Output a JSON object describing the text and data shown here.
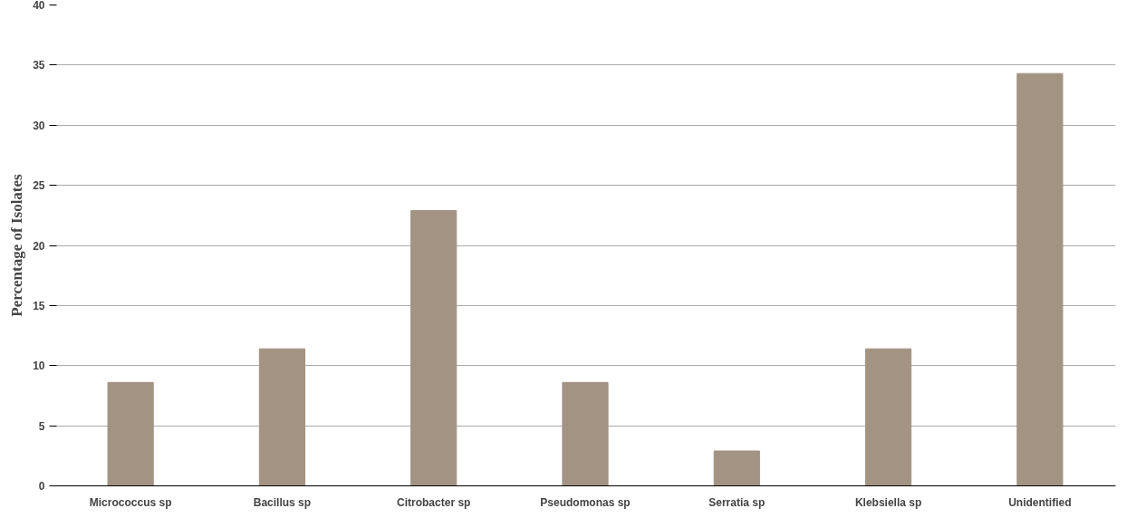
{
  "chart_data": {
    "type": "bar",
    "ylabel": "Percentage of Isolates",
    "categories": [
      "Micrococcus sp",
      "Bacillus sp",
      "Citrobacter sp",
      "Pseudomonas sp",
      "Serratia sp",
      "Klebsiella sp",
      "Unidentified"
    ],
    "values": [
      8.6,
      11.4,
      22.9,
      8.6,
      2.9,
      11.4,
      34.3
    ],
    "color": "#a39383",
    "ylim": [
      0,
      40
    ],
    "yticks": [
      0,
      5,
      10,
      15,
      20,
      25,
      30,
      35,
      40
    ],
    "grid": "y"
  }
}
